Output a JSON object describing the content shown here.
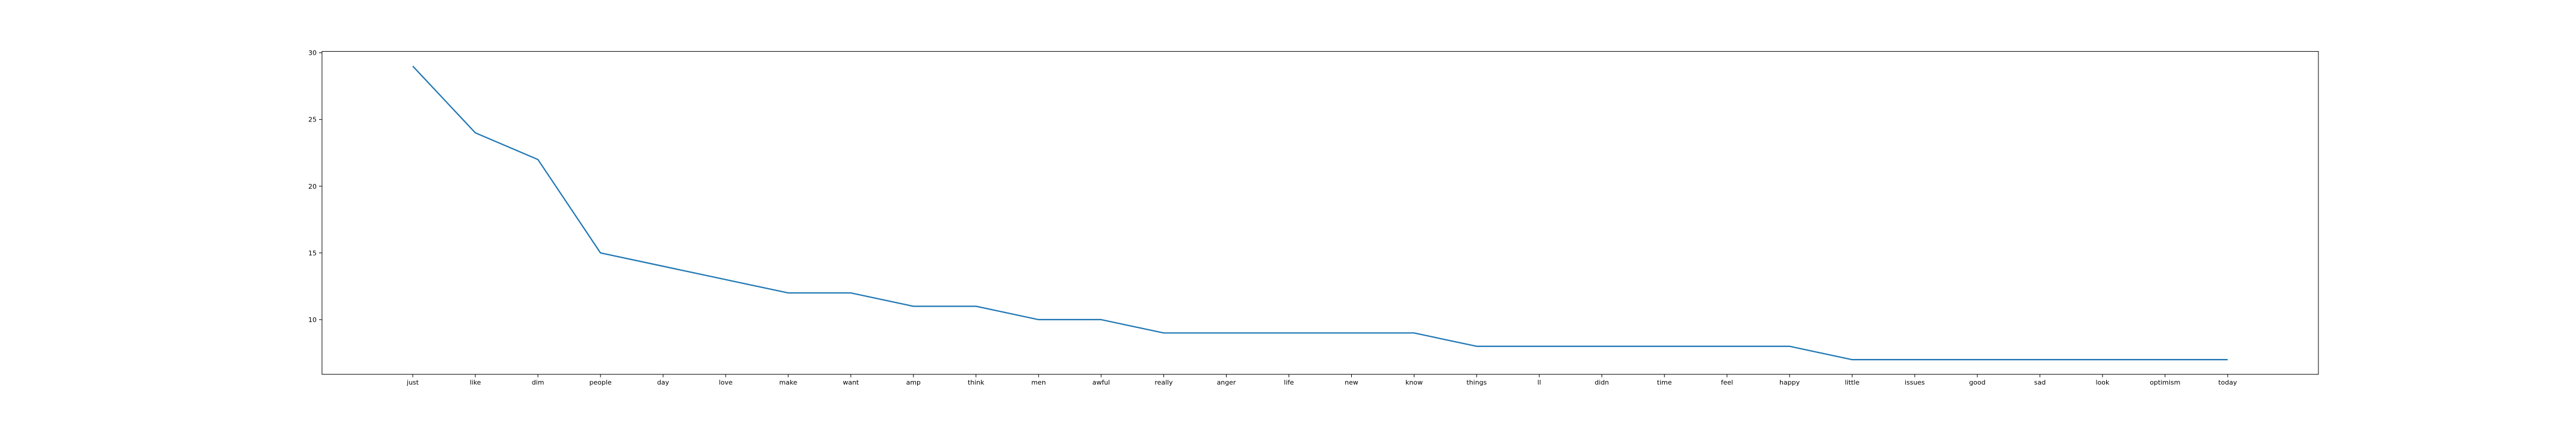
{
  "chart_data": {
    "type": "line",
    "categories": [
      "just",
      "like",
      "dim",
      "people",
      "day",
      "love",
      "make",
      "want",
      "amp",
      "think",
      "men",
      "awful",
      "really",
      "anger",
      "life",
      "new",
      "know",
      "things",
      "ll",
      "didn",
      "time",
      "feel",
      "happy",
      "little",
      "issues",
      "good",
      "sad",
      "look",
      "optimism",
      "today"
    ],
    "series": [
      {
        "values": [
          29,
          24,
          22,
          15,
          14,
          13,
          12,
          12,
          11,
          11,
          10,
          10,
          9,
          9,
          9,
          9,
          9,
          8,
          8,
          8,
          8,
          8,
          8,
          7,
          7,
          7,
          7,
          7,
          7,
          7
        ]
      }
    ],
    "ylim": [
      5.9,
      30.1
    ],
    "yticks": [
      10,
      15,
      20,
      25,
      30
    ],
    "xlim": [
      -1.45,
      30.45
    ],
    "grid": false,
    "line_color": "#1f77b4",
    "title": "",
    "xlabel": "",
    "ylabel": ""
  }
}
